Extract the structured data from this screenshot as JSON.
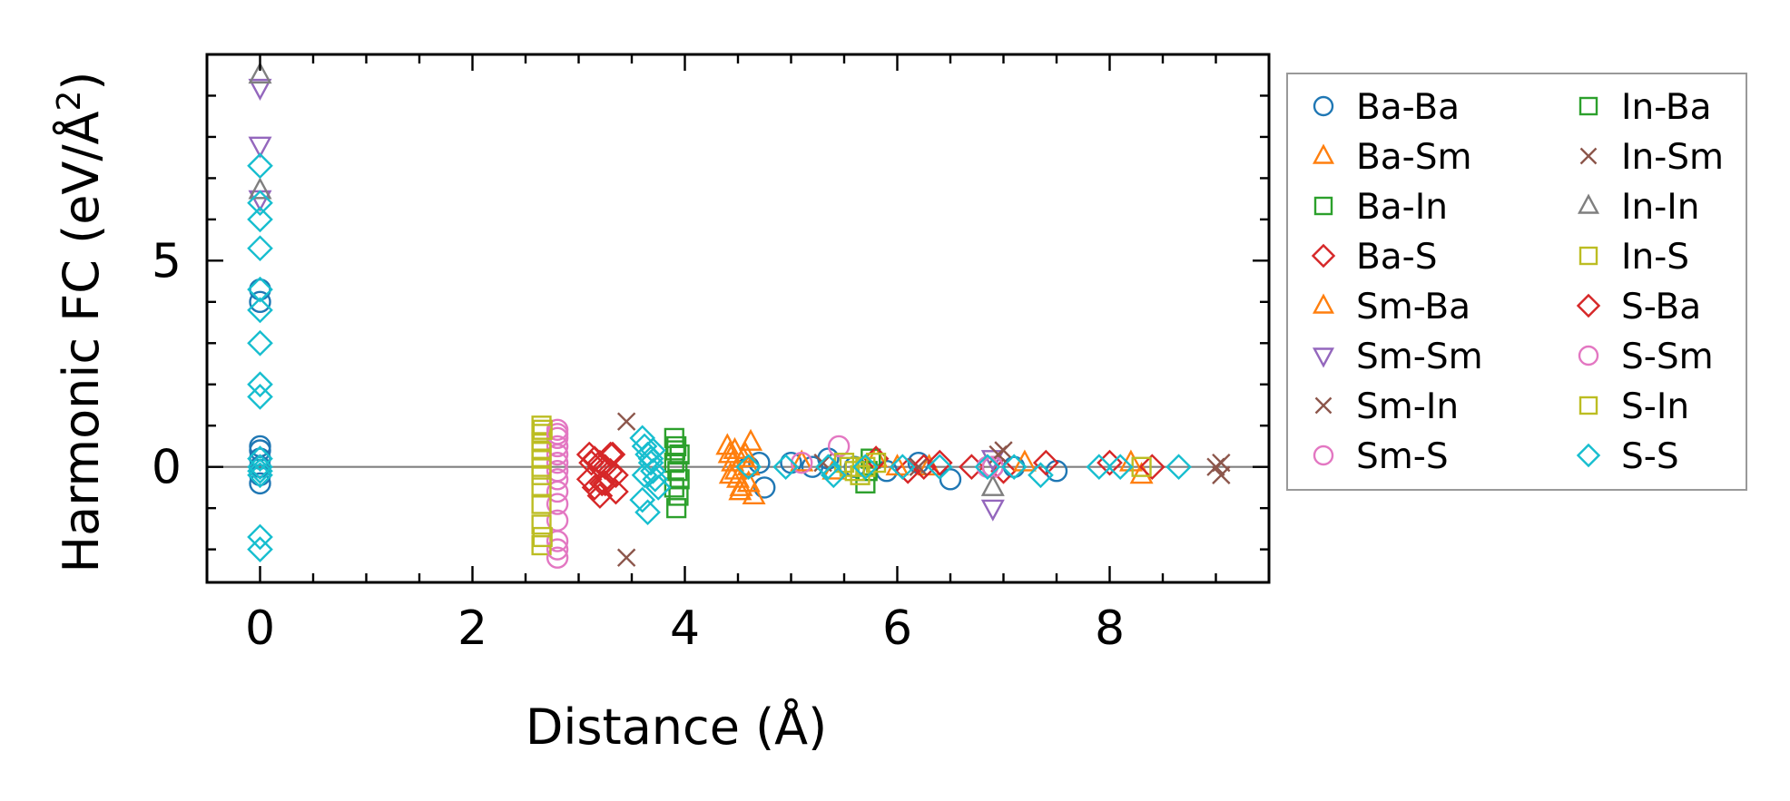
{
  "chart_data": {
    "type": "scatter",
    "xlabel": "Distance (Å)",
    "ylabel_main": "Harmonic FC (eV/Å",
    "ylabel_sup": "2",
    "ylabel_end": ")",
    "xlim": [
      -0.5,
      9.5
    ],
    "ylim": [
      -2.8,
      10.0
    ],
    "x_ticks": [
      "0",
      "2",
      "4",
      "6",
      "8"
    ],
    "x_tick_values": [
      0,
      2,
      4,
      6,
      8
    ],
    "y_ticks": [
      "0",
      "5"
    ],
    "y_tick_values": [
      0,
      5
    ],
    "zero_line": true,
    "grid": false,
    "legend_position": "outside-right",
    "series": [
      {
        "name": "Ba-Ba",
        "marker": "circle",
        "color": "#1f77b4",
        "x": [
          0,
          0,
          0,
          0,
          0,
          0,
          0,
          0,
          4.6,
          4.7,
          4.75,
          5.0,
          5.2,
          5.35,
          5.6,
          5.9,
          6.2,
          6.5,
          6.9,
          7.1,
          7.5
        ],
        "y": [
          0.5,
          0.4,
          0.2,
          0.0,
          -0.2,
          -0.4,
          4.3,
          4.0,
          0.0,
          0.1,
          -0.5,
          0.1,
          0.0,
          0.2,
          0.0,
          -0.1,
          0.1,
          -0.3,
          0.0,
          0.0,
          -0.1
        ]
      },
      {
        "name": "Ba-Sm",
        "marker": "triangle-up",
        "color": "#ff7f0e",
        "x": [
          4.4,
          4.42,
          4.45,
          4.48,
          4.5,
          4.52,
          4.55,
          4.6,
          4.62,
          4.65,
          5.1,
          5.4,
          5.8,
          6.3,
          8.2,
          8.3
        ],
        "y": [
          0.5,
          0.3,
          0.1,
          -0.1,
          -0.3,
          -0.6,
          0.2,
          -0.4,
          0.6,
          -0.7,
          0.1,
          -0.1,
          0.2,
          0.0,
          0.1,
          -0.2
        ]
      },
      {
        "name": "Ba-In",
        "marker": "square",
        "color": "#2ca02c",
        "x": [
          3.9,
          3.92,
          3.95,
          3.9,
          3.93,
          3.95,
          3.9,
          3.92,
          5.7,
          5.75
        ],
        "y": [
          0.7,
          0.5,
          0.3,
          0.1,
          -0.1,
          -0.3,
          -0.5,
          -1.0,
          -0.4,
          0.2
        ]
      },
      {
        "name": "Ba-S",
        "marker": "diamond",
        "color": "#d62728",
        "x": [
          3.1,
          3.15,
          3.2,
          3.25,
          3.3,
          3.35,
          3.1,
          3.15,
          3.2,
          3.3,
          3.35,
          3.25,
          3.2,
          5.8,
          6.1,
          6.4,
          6.7,
          7.0,
          8.0,
          8.4
        ],
        "y": [
          0.3,
          0.2,
          0.1,
          0.0,
          -0.1,
          -0.2,
          -0.3,
          -0.5,
          -0.7,
          0.3,
          -0.6,
          -0.4,
          0.0,
          0.2,
          -0.1,
          0.1,
          0.0,
          -0.1,
          0.1,
          0.0
        ]
      },
      {
        "name": "Sm-Ba",
        "marker": "triangle-up",
        "color": "#ff7f0e",
        "x": [
          4.43,
          4.47,
          4.53,
          4.57,
          4.6,
          6.0,
          7.2
        ],
        "y": [
          -0.2,
          0.4,
          -0.5,
          0.3,
          0.0,
          0.0,
          0.1
        ]
      },
      {
        "name": "Sm-Sm",
        "marker": "triangle-down",
        "color": "#9467bd",
        "x": [
          0,
          0,
          0,
          6.9,
          6.9
        ],
        "y": [
          9.2,
          7.8,
          6.5,
          -1.0,
          0.2
        ]
      },
      {
        "name": "Sm-In",
        "marker": "x",
        "color": "#8c564b",
        "x": [
          3.45,
          3.45,
          5.3,
          6.2,
          7.0,
          9.05,
          9.05
        ],
        "y": [
          1.1,
          -2.2,
          0.1,
          0.0,
          0.4,
          -0.2,
          0.1
        ]
      },
      {
        "name": "Sm-S",
        "marker": "circle",
        "color": "#e377c2",
        "x": [
          2.8,
          2.8,
          2.8,
          2.8,
          2.8,
          2.8,
          2.8,
          2.8,
          2.8,
          2.8,
          2.8,
          2.8,
          5.1,
          5.45,
          6.9
        ],
        "y": [
          0.9,
          0.7,
          0.5,
          0.3,
          0.1,
          -0.1,
          -0.3,
          -0.6,
          -0.9,
          -1.3,
          -1.8,
          -2.2,
          0.1,
          0.5,
          0.0
        ]
      },
      {
        "name": "In-Ba",
        "marker": "square",
        "color": "#2ca02c",
        "x": [
          3.91,
          3.94,
          5.72
        ],
        "y": [
          0.4,
          -0.7,
          -0.1
        ]
      },
      {
        "name": "In-Sm",
        "marker": "x",
        "color": "#8c564b",
        "x": [
          6.95,
          9.0
        ],
        "y": [
          0.3,
          0.0
        ]
      },
      {
        "name": "In-In",
        "marker": "triangle-up",
        "color": "#7f7f7f",
        "x": [
          0,
          0,
          6.9
        ],
        "y": [
          9.5,
          6.7,
          -0.5
        ]
      },
      {
        "name": "In-S",
        "marker": "square",
        "color": "#bcbd22",
        "x": [
          2.65,
          2.65,
          2.65,
          2.65,
          2.65,
          2.65,
          2.65,
          2.65,
          2.65,
          2.65,
          2.65,
          5.5,
          5.6,
          5.7,
          5.8,
          5.65,
          8.3
        ],
        "y": [
          1.0,
          0.8,
          0.6,
          0.4,
          0.2,
          0.0,
          -0.2,
          -0.5,
          -0.9,
          -1.4,
          -1.9,
          0.1,
          -0.1,
          0.0,
          0.1,
          -0.2,
          0.0
        ]
      },
      {
        "name": "S-Ba",
        "marker": "diamond",
        "color": "#d62728",
        "x": [
          3.12,
          3.22,
          3.32,
          6.25,
          7.4
        ],
        "y": [
          0.1,
          -0.4,
          0.3,
          0.0,
          0.1
        ]
      },
      {
        "name": "S-Sm",
        "marker": "circle",
        "color": "#e377c2",
        "x": [
          2.8,
          2.8,
          6.85
        ],
        "y": [
          0.8,
          -2.0,
          0.0
        ]
      },
      {
        "name": "S-In",
        "marker": "square",
        "color": "#bcbd22",
        "x": [
          2.66,
          2.66,
          5.55
        ],
        "y": [
          0.9,
          -1.7,
          0.0
        ]
      },
      {
        "name": "S-S",
        "marker": "diamond",
        "color": "#17becf",
        "x": [
          0,
          0,
          0,
          0,
          0,
          0,
          0,
          0,
          0,
          0,
          0,
          0,
          0,
          0,
          0,
          3.6,
          3.62,
          3.65,
          3.68,
          3.7,
          3.72,
          3.75,
          3.6,
          3.65,
          3.7,
          3.62,
          3.68,
          4.6,
          4.95,
          5.35,
          5.4,
          5.7,
          6.05,
          6.4,
          6.85,
          7.1,
          7.35,
          7.9,
          8.1,
          8.65
        ],
        "y": [
          7.3,
          6.4,
          6.0,
          5.3,
          4.3,
          3.8,
          3.0,
          2.0,
          1.7,
          0.2,
          0.0,
          -0.2,
          -1.7,
          -2.0,
          -0.1,
          0.7,
          0.5,
          0.3,
          0.1,
          -0.1,
          -0.3,
          -0.5,
          -0.8,
          -1.1,
          0.4,
          -0.2,
          0.2,
          0.0,
          0.0,
          0.0,
          -0.2,
          0.0,
          0.0,
          0.0,
          0.0,
          0.0,
          -0.2,
          0.0,
          0.0,
          0.0
        ]
      }
    ]
  }
}
